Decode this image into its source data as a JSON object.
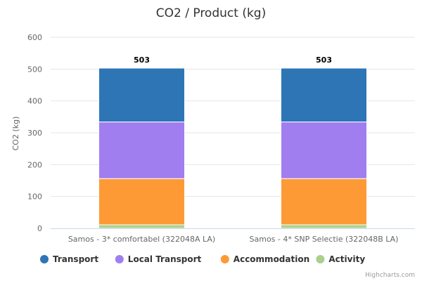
{
  "chart_data": {
    "type": "bar",
    "stacked": true,
    "title": "CO2 / Product (kg)",
    "xlabel": "",
    "ylabel": "CO2 (kg)",
    "ylim": [
      0,
      600
    ],
    "yticks": [
      0,
      100,
      200,
      300,
      400,
      500,
      600
    ],
    "grid": true,
    "categories": [
      "Samos - 3* comfortabel (322048A LA)",
      "Samos - 4* SNP Selectie (322048B LA)"
    ],
    "series": [
      {
        "name": "Activity",
        "color": "#a9d18e",
        "values": [
          11,
          11
        ]
      },
      {
        "name": "Accommodation",
        "color": "#fd9a35",
        "values": [
          145,
          145
        ]
      },
      {
        "name": "Local Transport",
        "color": "#a07ef0",
        "values": [
          178,
          178
        ]
      },
      {
        "name": "Transport",
        "color": "#2e75b6",
        "values": [
          169,
          169
        ]
      }
    ],
    "totals": [
      "503",
      "503"
    ],
    "legend": {
      "placement": "bottom",
      "items": [
        {
          "name": "Transport",
          "color": "#2e75b6"
        },
        {
          "name": "Local Transport",
          "color": "#a07ef0"
        },
        {
          "name": "Accommodation",
          "color": "#fd9a35"
        },
        {
          "name": "Activity",
          "color": "#a9d18e"
        }
      ]
    },
    "credits": "Highcharts.com"
  }
}
